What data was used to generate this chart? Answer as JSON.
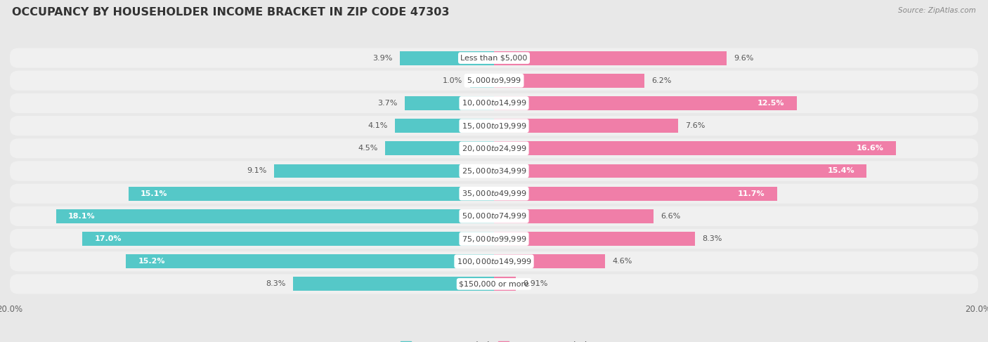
{
  "title": "OCCUPANCY BY HOUSEHOLDER INCOME BRACKET IN ZIP CODE 47303",
  "source": "Source: ZipAtlas.com",
  "categories": [
    "Less than $5,000",
    "$5,000 to $9,999",
    "$10,000 to $14,999",
    "$15,000 to $19,999",
    "$20,000 to $24,999",
    "$25,000 to $34,999",
    "$35,000 to $49,999",
    "$50,000 to $74,999",
    "$75,000 to $99,999",
    "$100,000 to $149,999",
    "$150,000 or more"
  ],
  "owner_values": [
    3.9,
    1.0,
    3.7,
    4.1,
    4.5,
    9.1,
    15.1,
    18.1,
    17.0,
    15.2,
    8.3
  ],
  "renter_values": [
    9.6,
    6.2,
    12.5,
    7.6,
    16.6,
    15.4,
    11.7,
    6.6,
    8.3,
    4.6,
    0.91
  ],
  "owner_color": "#55C8C8",
  "renter_color": "#F07EA8",
  "background_color": "#e8e8e8",
  "bar_row_color": "#f0f0f0",
  "axis_max": 20.0,
  "title_fontsize": 11.5,
  "label_fontsize": 8.0,
  "tick_fontsize": 8.5,
  "legend_fontsize": 9,
  "bar_height": 0.62,
  "source_fontsize": 7.5
}
